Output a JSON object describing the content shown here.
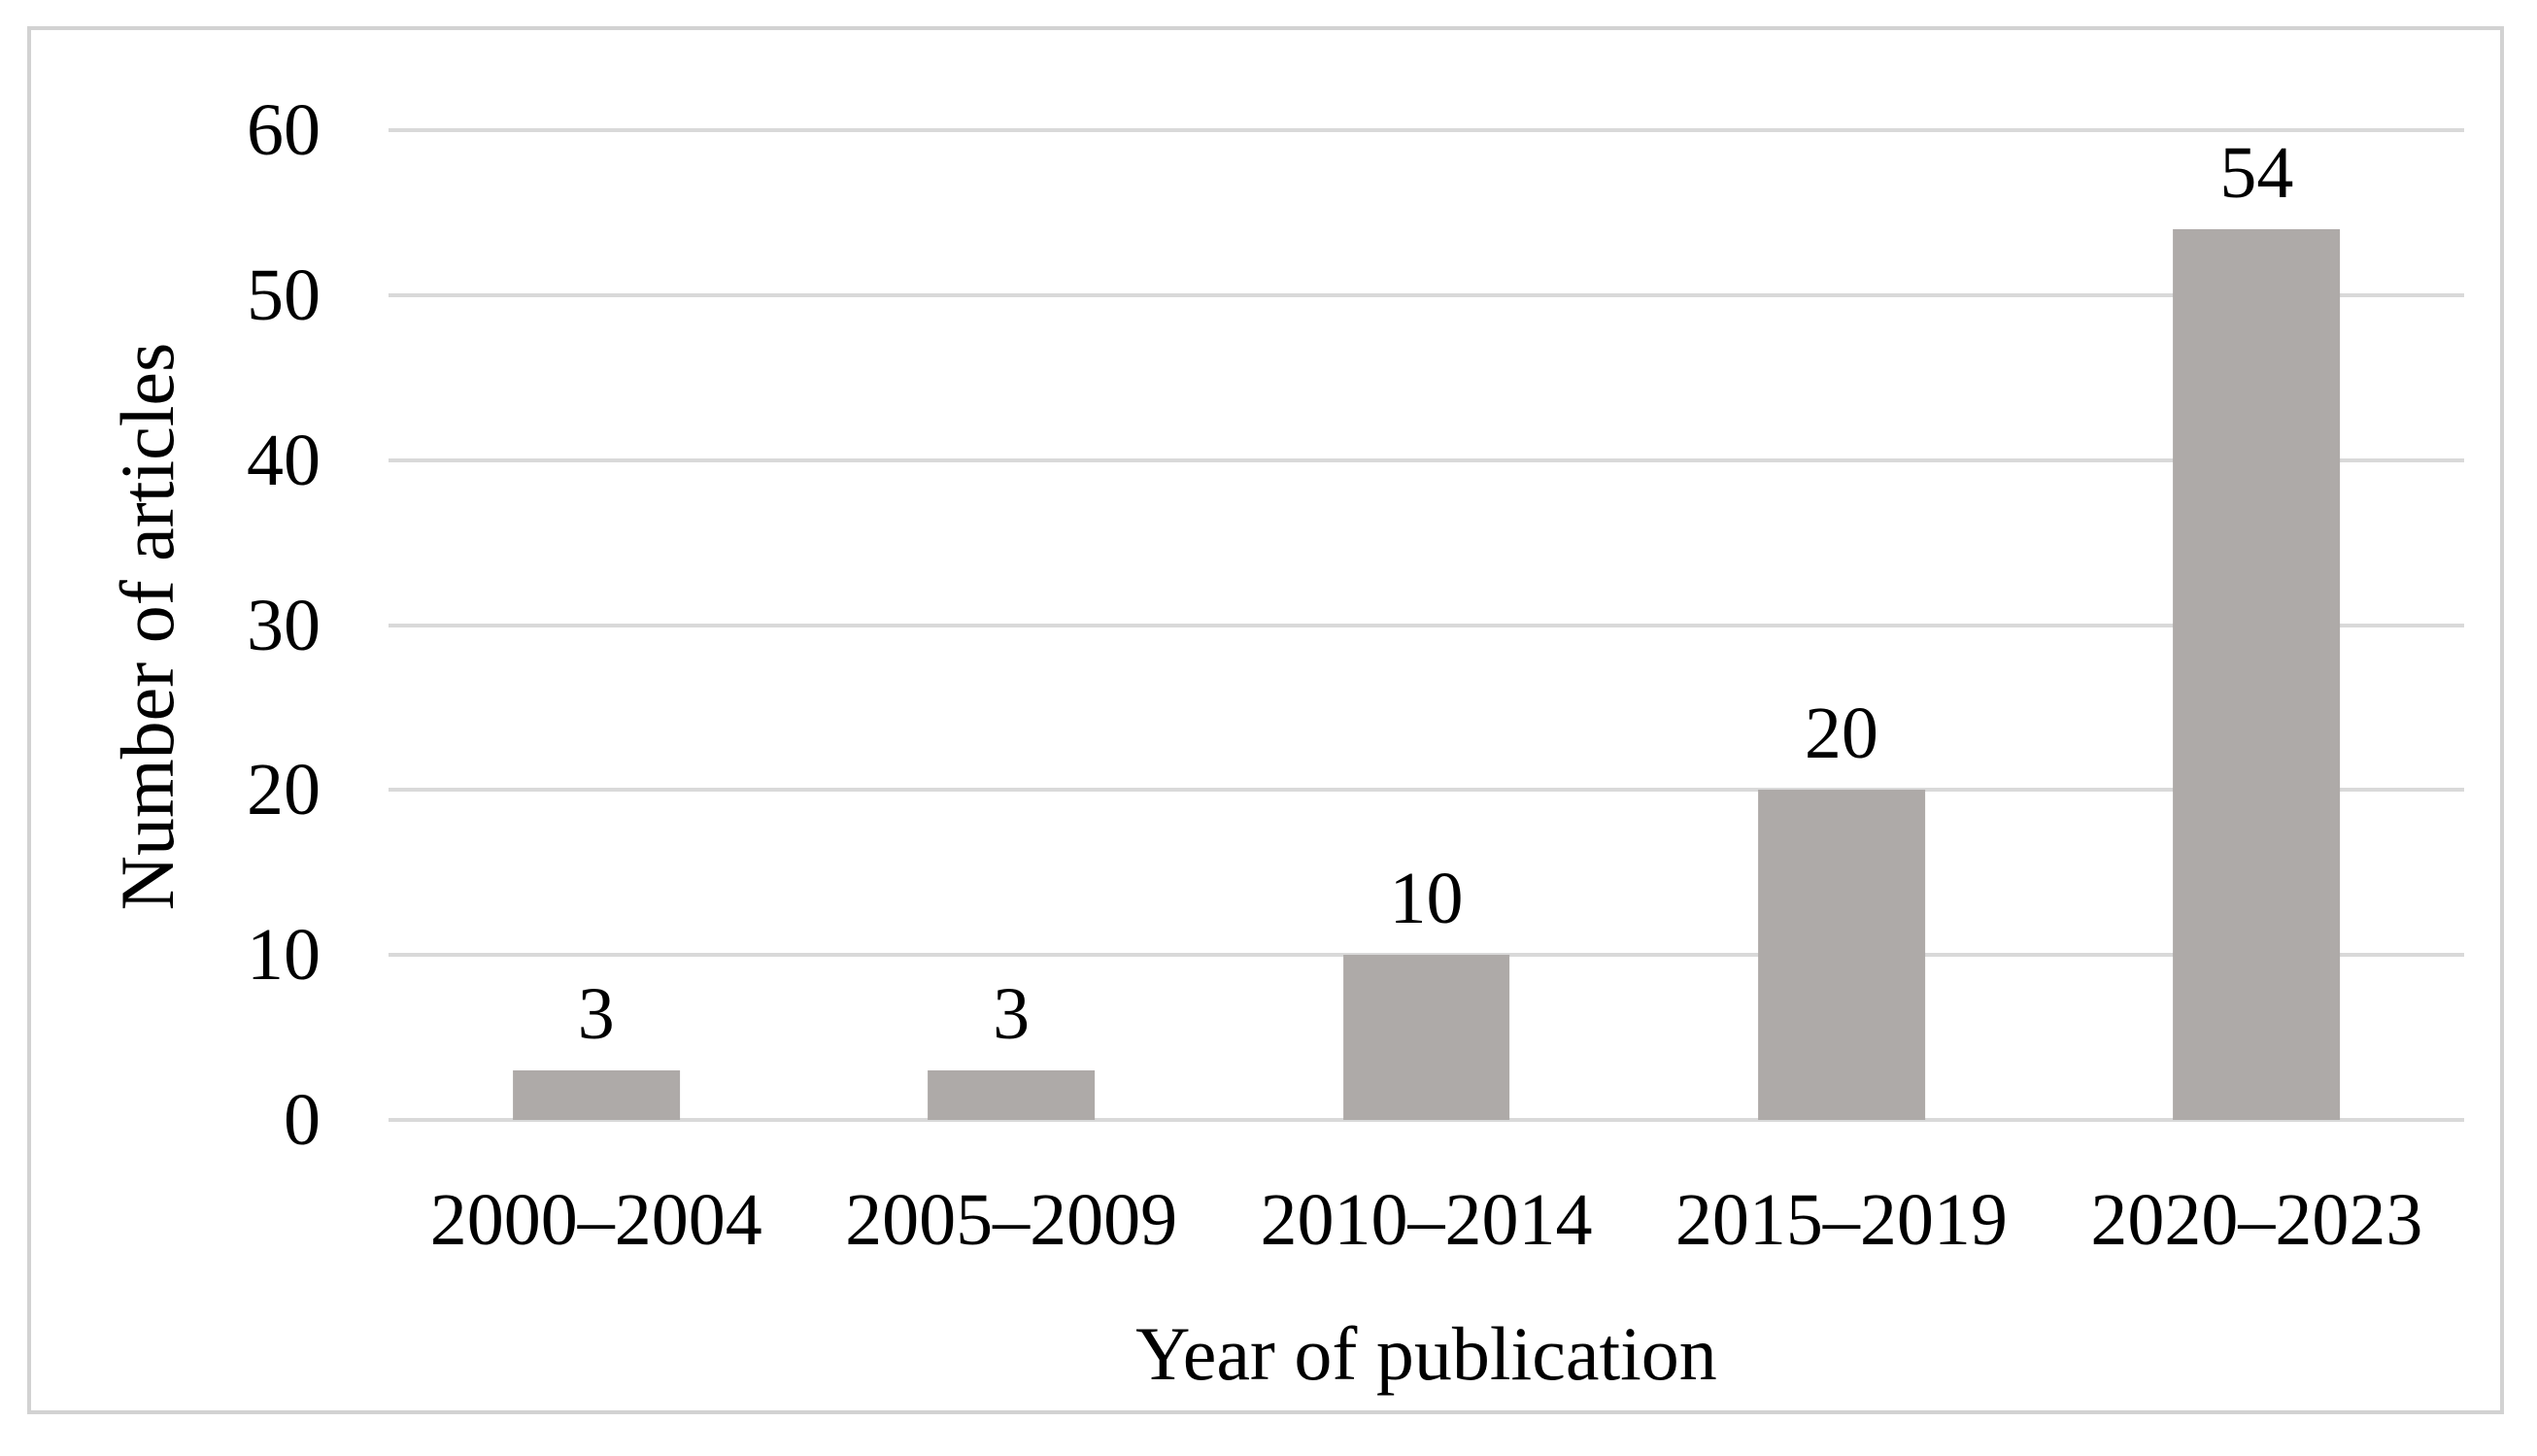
{
  "chart_data": {
    "type": "bar",
    "categories": [
      "2000–2004",
      "2005–2009",
      "2010–2014",
      "2015–2019",
      "2020–2023"
    ],
    "values": [
      3,
      3,
      10,
      20,
      54
    ],
    "bar_labels": [
      "3",
      "3",
      "10",
      "20",
      "54"
    ],
    "xlabel": "Year of publication",
    "ylabel": "Number of articles",
    "ylim": [
      0,
      60
    ],
    "yticks": [
      0,
      10,
      20,
      30,
      40,
      50,
      60
    ],
    "grid": "horizontal",
    "legend": "none",
    "colors": {
      "bar": "#aeaaa8",
      "gridline": "#d9d9d9",
      "frame_border": "#d2d2d2",
      "text": "#000000",
      "background": "#ffffff"
    }
  }
}
